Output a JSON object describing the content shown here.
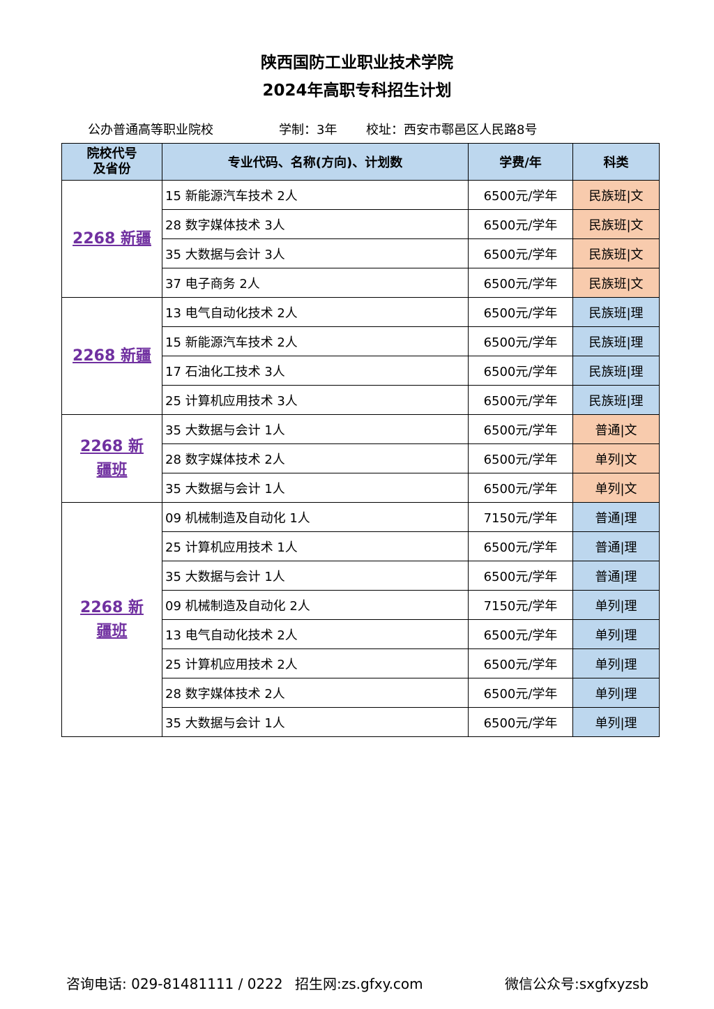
{
  "title": "陕西国防工业职业技术学院",
  "subtitle": "2024年高职专科招生计划",
  "info": {
    "type": "公办普通高等职业院校",
    "duration": "学制：3年",
    "address": "校址：西安市鄠邑区人民路8号"
  },
  "headers": [
    "院校代号及省份",
    "专业代码、名称(方向)、计划数",
    "学费/年",
    "科类"
  ],
  "colors": {
    "header": "#bdd7ee",
    "wen": "#f8cbad",
    "li": "#bdd7ee",
    "group_text": "#7030a0"
  },
  "groups": [
    {
      "label": "2268 新疆",
      "rows": [
        [
          "15 新能源汽车技术 2人",
          "6500元/学年",
          "民族班|文"
        ],
        [
          "28 数字媒体技术 3人",
          "6500元/学年",
          "民族班|文"
        ],
        [
          "35 大数据与会计 3人",
          "6500元/学年",
          "民族班|文"
        ],
        [
          "37 电子商务 2人",
          "6500元/学年",
          "民族班|文"
        ]
      ]
    },
    {
      "label": "2268 新疆",
      "rows": [
        [
          "13 电气自动化技术 2人",
          "6500元/学年",
          "民族班|理"
        ],
        [
          "15 新能源汽车技术 2人",
          "6500元/学年",
          "民族班|理"
        ],
        [
          "17 石油化工技术 3人",
          "6500元/学年",
          "民族班|理"
        ],
        [
          "25 计算机应用技术 3人",
          "6500元/学年",
          "民族班|理"
        ]
      ]
    },
    {
      "label": "2268 新疆班",
      "rows": [
        [
          "35 大数据与会计 1人",
          "6500元/学年",
          "普通|文"
        ],
        [
          "28 数字媒体技术 2人",
          "6500元/学年",
          "单列|文"
        ],
        [
          "35 大数据与会计 1人",
          "6500元/学年",
          "单列|文"
        ]
      ]
    },
    {
      "label": "2268 新疆班",
      "rows": [
        [
          "09 机械制造及自动化 1人",
          "7150元/学年",
          "普通|理"
        ],
        [
          "25 计算机应用技术 1人",
          "6500元/学年",
          "普通|理"
        ],
        [
          "35 大数据与会计 1人",
          "6500元/学年",
          "普通|理"
        ],
        [
          "09 机械制造及自动化 2人",
          "7150元/学年",
          "单列|理"
        ],
        [
          "13 电气自动化技术 2人",
          "6500元/学年",
          "单列|理"
        ],
        [
          "25 计算机应用技术 2人",
          "6500元/学年",
          "单列|理"
        ],
        [
          "28 数字媒体技术 2人",
          "6500元/学年",
          "单列|理"
        ],
        [
          "35 大数据与会计 1人",
          "6500元/学年",
          "单列|理"
        ]
      ]
    }
  ],
  "footer": {
    "phone": "咨询电话: 029-81481111 / 0222",
    "web": "招生网:zs.gfxy.com",
    "wechat": "微信公众号:sxgfxyzsb"
  }
}
